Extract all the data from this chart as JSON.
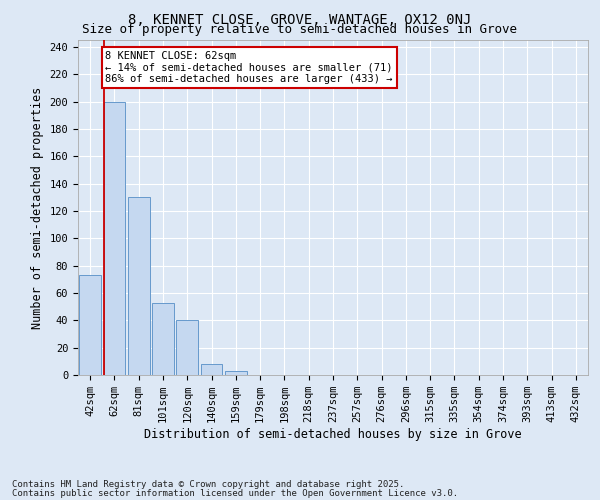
{
  "title1": "8, KENNET CLOSE, GROVE, WANTAGE, OX12 0NJ",
  "title2": "Size of property relative to semi-detached houses in Grove",
  "xlabel": "Distribution of semi-detached houses by size in Grove",
  "ylabel": "Number of semi-detached properties",
  "categories": [
    "42sqm",
    "62sqm",
    "81sqm",
    "101sqm",
    "120sqm",
    "140sqm",
    "159sqm",
    "179sqm",
    "198sqm",
    "218sqm",
    "237sqm",
    "257sqm",
    "276sqm",
    "296sqm",
    "315sqm",
    "335sqm",
    "354sqm",
    "374sqm",
    "393sqm",
    "413sqm",
    "432sqm"
  ],
  "values": [
    73,
    200,
    130,
    53,
    40,
    8,
    3,
    0,
    0,
    0,
    0,
    0,
    0,
    0,
    0,
    0,
    0,
    0,
    0,
    0,
    0
  ],
  "bar_color": "#c5d8f0",
  "bar_edge_color": "#6699cc",
  "vline_color": "#cc0000",
  "vline_xidx": 1,
  "annotation_title": "8 KENNET CLOSE: 62sqm",
  "annotation_line1": "← 14% of semi-detached houses are smaller (71)",
  "annotation_line2": "86% of semi-detached houses are larger (433) →",
  "annotation_box_color": "#cc0000",
  "ylim": [
    0,
    245
  ],
  "yticks": [
    0,
    20,
    40,
    60,
    80,
    100,
    120,
    140,
    160,
    180,
    200,
    220,
    240
  ],
  "footer1": "Contains HM Land Registry data © Crown copyright and database right 2025.",
  "footer2": "Contains public sector information licensed under the Open Government Licence v3.0.",
  "bg_color": "#dde8f5",
  "plot_bg_color": "#dde8f5",
  "grid_color": "#ffffff",
  "title_fontsize": 10,
  "subtitle_fontsize": 9,
  "axis_label_fontsize": 8.5,
  "tick_fontsize": 7.5,
  "footer_fontsize": 6.5,
  "ann_fontsize": 7.5
}
